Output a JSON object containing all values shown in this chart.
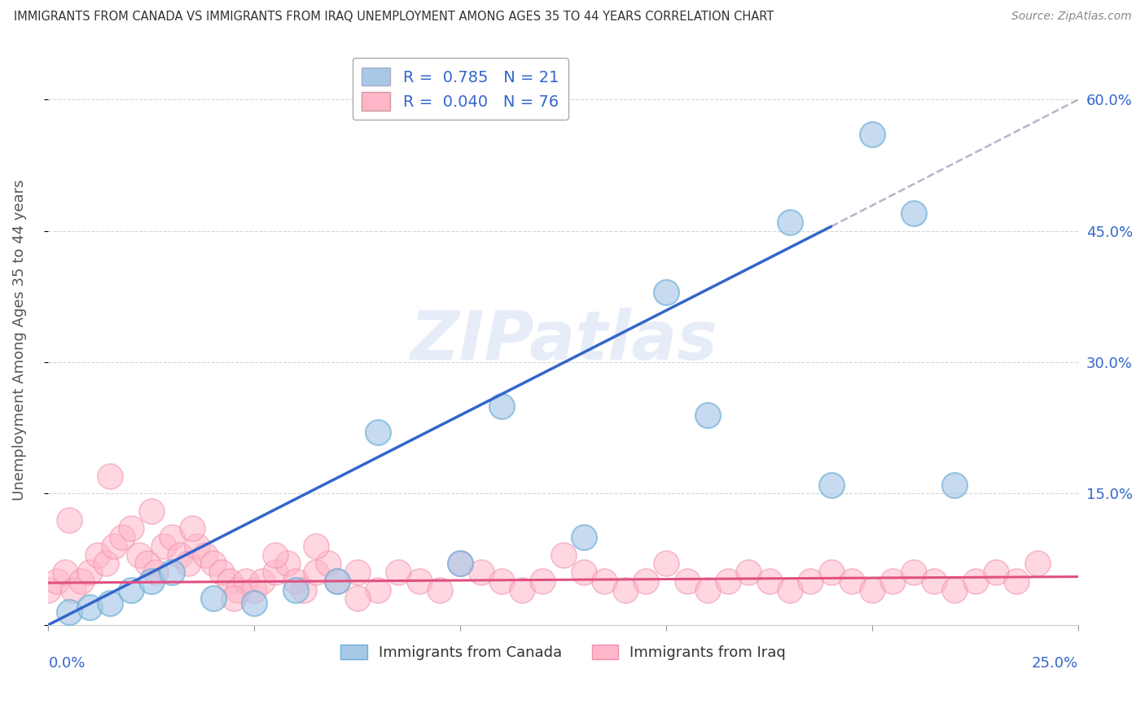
{
  "title": "IMMIGRANTS FROM CANADA VS IMMIGRANTS FROM IRAQ UNEMPLOYMENT AMONG AGES 35 TO 44 YEARS CORRELATION CHART",
  "source": "Source: ZipAtlas.com",
  "ylabel": "Unemployment Among Ages 35 to 44 years",
  "xmin": 0.0,
  "xmax": 0.25,
  "ymin": 0.0,
  "ymax": 0.65,
  "right_yticks": [
    0.0,
    0.15,
    0.3,
    0.45,
    0.6
  ],
  "right_yticklabels": [
    "",
    "15.0%",
    "30.0%",
    "45.0%",
    "60.0%"
  ],
  "canada_R": 0.785,
  "canada_N": 21,
  "iraq_R": 0.04,
  "iraq_N": 76,
  "canada_color": "#a8c8e8",
  "canada_edge_color": "#6baed6",
  "iraq_color": "#ffb6c8",
  "iraq_edge_color": "#f090b0",
  "canada_line_color": "#3366cc",
  "iraq_line_color": "#e05080",
  "dash_color": "#b0b8c8",
  "background_color": "#ffffff",
  "grid_color": "#cccccc",
  "watermark": "ZIPatlas",
  "legend_text_color": "#3366cc",
  "title_color": "#333333",
  "source_color": "#888888",
  "ylabel_color": "#555555",
  "axis_label_color": "#3366cc",
  "canada_x": [
    0.005,
    0.01,
    0.015,
    0.02,
    0.025,
    0.03,
    0.04,
    0.05,
    0.06,
    0.07,
    0.08,
    0.1,
    0.11,
    0.13,
    0.15,
    0.16,
    0.18,
    0.19,
    0.2,
    0.21,
    0.22
  ],
  "canada_y": [
    0.015,
    0.02,
    0.025,
    0.04,
    0.05,
    0.06,
    0.03,
    0.025,
    0.04,
    0.05,
    0.22,
    0.07,
    0.25,
    0.1,
    0.38,
    0.24,
    0.46,
    0.16,
    0.56,
    0.47,
    0.16
  ],
  "iraq_x": [
    0.0,
    0.002,
    0.004,
    0.006,
    0.008,
    0.01,
    0.012,
    0.014,
    0.016,
    0.018,
    0.02,
    0.022,
    0.024,
    0.026,
    0.028,
    0.03,
    0.032,
    0.034,
    0.036,
    0.038,
    0.04,
    0.042,
    0.044,
    0.046,
    0.048,
    0.05,
    0.052,
    0.055,
    0.058,
    0.06,
    0.062,
    0.065,
    0.068,
    0.07,
    0.075,
    0.08,
    0.085,
    0.09,
    0.095,
    0.1,
    0.105,
    0.11,
    0.115,
    0.12,
    0.125,
    0.13,
    0.135,
    0.14,
    0.145,
    0.15,
    0.155,
    0.16,
    0.165,
    0.17,
    0.175,
    0.18,
    0.185,
    0.19,
    0.195,
    0.2,
    0.205,
    0.21,
    0.215,
    0.22,
    0.225,
    0.23,
    0.235,
    0.24,
    0.005,
    0.015,
    0.025,
    0.035,
    0.045,
    0.055,
    0.065,
    0.075
  ],
  "iraq_y": [
    0.04,
    0.05,
    0.06,
    0.04,
    0.05,
    0.06,
    0.08,
    0.07,
    0.09,
    0.1,
    0.11,
    0.08,
    0.07,
    0.06,
    0.09,
    0.1,
    0.08,
    0.07,
    0.09,
    0.08,
    0.07,
    0.06,
    0.05,
    0.04,
    0.05,
    0.04,
    0.05,
    0.06,
    0.07,
    0.05,
    0.04,
    0.06,
    0.07,
    0.05,
    0.06,
    0.04,
    0.06,
    0.05,
    0.04,
    0.07,
    0.06,
    0.05,
    0.04,
    0.05,
    0.08,
    0.06,
    0.05,
    0.04,
    0.05,
    0.07,
    0.05,
    0.04,
    0.05,
    0.06,
    0.05,
    0.04,
    0.05,
    0.06,
    0.05,
    0.04,
    0.05,
    0.06,
    0.05,
    0.04,
    0.05,
    0.06,
    0.05,
    0.07,
    0.12,
    0.17,
    0.13,
    0.11,
    0.03,
    0.08,
    0.09,
    0.03
  ],
  "canada_line_x": [
    0.0,
    0.19
  ],
  "canada_line_y": [
    0.0,
    0.455
  ],
  "dash_line_x": [
    0.19,
    0.25
  ],
  "dash_line_y": [
    0.455,
    0.6
  ],
  "iraq_line_x": [
    0.0,
    0.25
  ],
  "iraq_line_y": [
    0.048,
    0.055
  ]
}
